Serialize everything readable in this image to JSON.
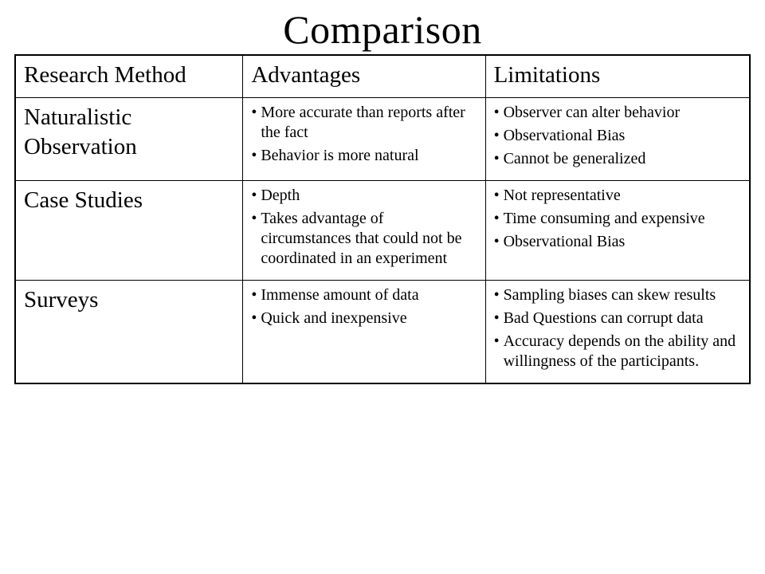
{
  "title": "Comparison",
  "colors": {
    "background": "#ffffff",
    "text": "#000000",
    "border": "#000000"
  },
  "typography": {
    "family": "Times New Roman",
    "title_fontsize": 50,
    "header_fontsize": 29,
    "body_fontsize": 20
  },
  "table": {
    "type": "table",
    "column_widths_pct": [
      31,
      33,
      36
    ],
    "columns": [
      "Research Method",
      "Advantages",
      "Limitations"
    ],
    "rows": [
      {
        "method": "Naturalistic Observation",
        "advantages": [
          "More accurate than reports after the fact",
          "Behavior is more natural"
        ],
        "limitations": [
          "Observer can alter behavior",
          "Observational Bias",
          "Cannot be generalized"
        ]
      },
      {
        "method": "Case Studies",
        "advantages": [
          "Depth",
          "Takes advantage of circumstances that could not be coordinated in an experiment"
        ],
        "limitations": [
          "Not representative",
          "Time consuming and expensive",
          "Observational Bias"
        ]
      },
      {
        "method": "Surveys",
        "advantages": [
          " Immense amount of data",
          "Quick and inexpensive"
        ],
        "limitations": [
          " Sampling biases can skew results",
          "Bad Questions can corrupt data",
          "Accuracy depends on the ability and willingness of the participants."
        ]
      }
    ]
  }
}
